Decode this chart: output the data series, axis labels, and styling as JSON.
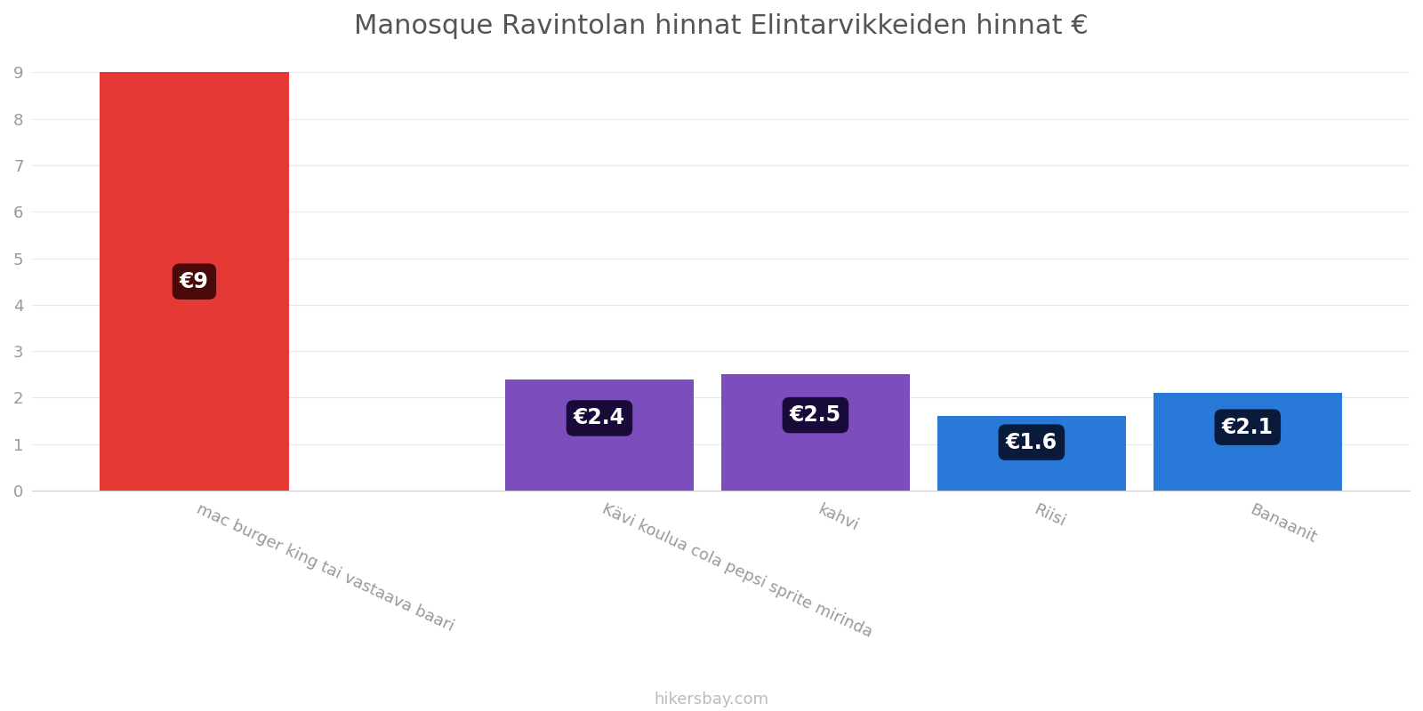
{
  "title": "Manosque Ravintolan hinnat Elintarvikkeiden hinnat €",
  "categories": [
    "mac burger king tai vastaava baari",
    "Kävi koulua cola pepsi sprite mirinda",
    "kahvi",
    "Riisi",
    "Banaanit"
  ],
  "values": [
    9,
    2.4,
    2.5,
    1.6,
    2.1
  ],
  "bar_colors": [
    "#e53935",
    "#7c4dbd",
    "#7c4dbd",
    "#2979d8",
    "#2979d8"
  ],
  "label_bg_colors": [
    "#4a0a0a",
    "#1a0a3a",
    "#1a0a3a",
    "#0a1a3a",
    "#0a1a3a"
  ],
  "labels": [
    "€9",
    "€2.4",
    "€2.5",
    "€1.6",
    "€2.1"
  ],
  "x_positions": [
    0,
    1.5,
    2.3,
    3.1,
    3.9
  ],
  "ylim": [
    0,
    9.3
  ],
  "yticks": [
    0,
    1,
    2,
    3,
    4,
    5,
    6,
    7,
    8,
    9
  ],
  "footer_text": "hikersbay.com",
  "title_fontsize": 22,
  "label_fontsize": 17,
  "tick_fontsize": 13,
  "footer_fontsize": 13,
  "background_color": "#ffffff",
  "bar_width": 0.7
}
